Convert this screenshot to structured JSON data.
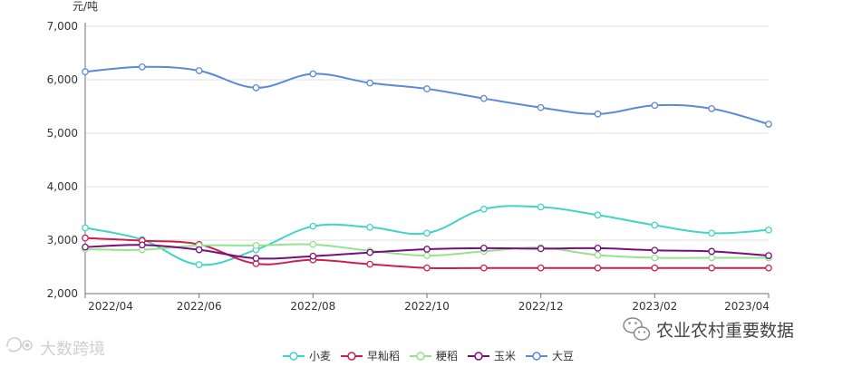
{
  "chart_data": {
    "type": "line",
    "ylabel": "元/吨",
    "ylim": [
      2000,
      7000
    ],
    "yticks": [
      "2,000",
      "3,000",
      "4,000",
      "5,000",
      "6,000",
      "7,000"
    ],
    "ytick_values": [
      2000,
      3000,
      4000,
      5000,
      6000,
      7000
    ],
    "x": [
      "2022/04",
      "2022/05",
      "2022/06",
      "2022/07",
      "2022/08",
      "2022/09",
      "2022/10",
      "2022/11",
      "2022/12",
      "2023/01",
      "2023/02",
      "2023/03",
      "2023/04"
    ],
    "xtick_labels": [
      "2022/04",
      "2022/06",
      "2022/08",
      "2022/10",
      "2022/12",
      "2023/02",
      "2023/04"
    ],
    "xtick_indices": [
      0,
      2,
      4,
      6,
      8,
      10,
      12
    ],
    "grid": true,
    "legend_position": "bottom-center",
    "series": [
      {
        "name": "小麦",
        "color": "#40d3c8",
        "values": [
          3230,
          3010,
          2540,
          2820,
          3260,
          3240,
          3130,
          3580,
          3620,
          3470,
          3280,
          3130,
          3190
        ]
      },
      {
        "name": "早籼稻",
        "color": "#cc1f4f",
        "values": [
          3040,
          2990,
          2920,
          2560,
          2630,
          2550,
          2480,
          2480,
          2480,
          2480,
          2480,
          2480,
          2480
        ]
      },
      {
        "name": "粳稻",
        "color": "#95e38f",
        "values": [
          2830,
          2820,
          2900,
          2900,
          2920,
          2800,
          2710,
          2790,
          2860,
          2720,
          2670,
          2670,
          2670
        ]
      },
      {
        "name": "玉米",
        "color": "#7a0d7e",
        "values": [
          2870,
          2910,
          2820,
          2660,
          2700,
          2770,
          2830,
          2850,
          2840,
          2850,
          2810,
          2790,
          2710
        ]
      },
      {
        "name": "大豆",
        "color": "#5a8ad8",
        "values": [
          6150,
          6240,
          6170,
          5850,
          6110,
          5940,
          5830,
          5650,
          5480,
          5360,
          5520,
          5460,
          5170
        ]
      }
    ]
  },
  "watermarks": {
    "left": "大数跨境",
    "right": "农业农村重要数据"
  },
  "icons": {
    "left_watermark": "brand-logo-icon",
    "right_watermark": "wechat-icon"
  }
}
